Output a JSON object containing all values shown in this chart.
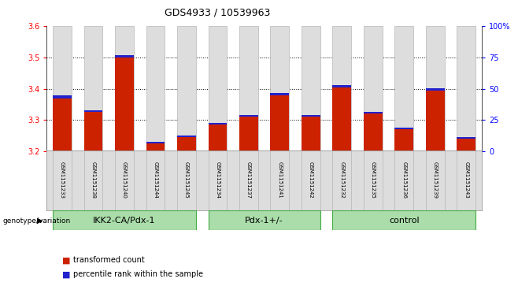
{
  "title": "GDS4933 / 10539963",
  "samples": [
    "GSM1151233",
    "GSM1151238",
    "GSM1151240",
    "GSM1151244",
    "GSM1151245",
    "GSM1151234",
    "GSM1151237",
    "GSM1151241",
    "GSM1151242",
    "GSM1151232",
    "GSM1151235",
    "GSM1151236",
    "GSM1151239",
    "GSM1151243"
  ],
  "red_values": [
    3.37,
    3.325,
    3.5,
    3.225,
    3.245,
    3.285,
    3.31,
    3.38,
    3.31,
    3.405,
    3.32,
    3.27,
    3.395,
    3.24
  ],
  "blue_heights": [
    0.008,
    0.007,
    0.007,
    0.006,
    0.006,
    0.007,
    0.006,
    0.007,
    0.006,
    0.007,
    0.006,
    0.006,
    0.007,
    0.006
  ],
  "ymin": 3.2,
  "ymax": 3.6,
  "y2min": 0,
  "y2max": 100,
  "yticks": [
    3.2,
    3.3,
    3.4,
    3.5,
    3.6
  ],
  "y2ticks": [
    0,
    25,
    50,
    75,
    100
  ],
  "y2ticklabels": [
    "0",
    "25",
    "50",
    "75",
    "100%"
  ],
  "groups": [
    {
      "label": "IKK2-CA/Pdx-1",
      "start": 0,
      "end": 4
    },
    {
      "label": "Pdx-1+/-",
      "start": 5,
      "end": 8
    },
    {
      "label": "control",
      "start": 9,
      "end": 13
    }
  ],
  "group_color": "#aaddaa",
  "group_border_color": "#44aa44",
  "bar_bg_color": "#dddddd",
  "bar_border_color": "#aaaaaa",
  "red_color": "#cc2200",
  "blue_color": "#2222cc",
  "legend_red": "transformed count",
  "legend_blue": "percentile rank within the sample",
  "genotype_label": "genotype/variation",
  "bar_width": 0.6,
  "dotted_line_color": "#000000",
  "title_fontsize": 9,
  "tick_fontsize": 7,
  "sample_fontsize": 5,
  "group_fontsize": 8,
  "legend_fontsize": 7
}
